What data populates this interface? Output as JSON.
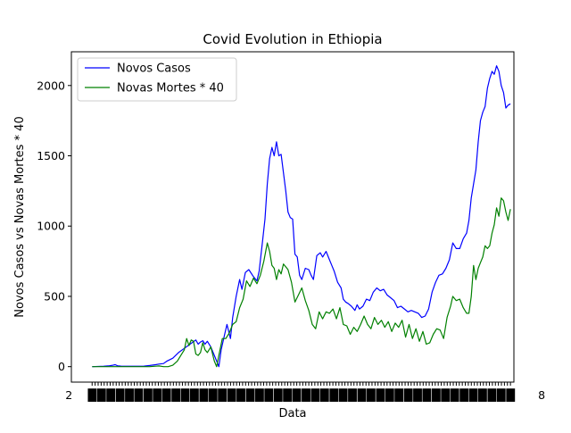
{
  "chart_data": {
    "type": "line",
    "title": "Covid Evolution in Ethiopia",
    "xlabel": "Data",
    "ylabel": "Novos Casos vs Novas Mortes * 40",
    "ylim": [
      -110,
      2240
    ],
    "xlim": [
      -18,
      366
    ],
    "yticks": [
      0,
      500,
      1000,
      1500,
      2000
    ],
    "x_tick_labels_note": "2",
    "x_tick_labels_end": "8",
    "x_tick_count": 140,
    "grid": false,
    "legend_position": "upper left",
    "series": [
      {
        "name": "Novos Casos",
        "color": "#0000ff",
        "points": [
          [
            0,
            0
          ],
          [
            10,
            3
          ],
          [
            15,
            6
          ],
          [
            18,
            10
          ],
          [
            20,
            14
          ],
          [
            22,
            6
          ],
          [
            25,
            4
          ],
          [
            30,
            3
          ],
          [
            35,
            3
          ],
          [
            40,
            3
          ],
          [
            45,
            4
          ],
          [
            50,
            8
          ],
          [
            55,
            14
          ],
          [
            58,
            18
          ],
          [
            62,
            22
          ],
          [
            65,
            40
          ],
          [
            70,
            60
          ],
          [
            75,
            100
          ],
          [
            80,
            130
          ],
          [
            85,
            160
          ],
          [
            90,
            190
          ],
          [
            92,
            160
          ],
          [
            94,
            175
          ],
          [
            96,
            185
          ],
          [
            98,
            160
          ],
          [
            100,
            180
          ],
          [
            103,
            140
          ],
          [
            105,
            100
          ],
          [
            108,
            40
          ],
          [
            110,
            0
          ],
          [
            112,
            120
          ],
          [
            115,
            230
          ],
          [
            117,
            300
          ],
          [
            120,
            200
          ],
          [
            122,
            350
          ],
          [
            125,
            500
          ],
          [
            128,
            620
          ],
          [
            130,
            550
          ],
          [
            133,
            670
          ],
          [
            136,
            690
          ],
          [
            140,
            640
          ],
          [
            143,
            610
          ],
          [
            145,
            680
          ],
          [
            148,
            900
          ],
          [
            150,
            1050
          ],
          [
            152,
            1300
          ],
          [
            154,
            1480
          ],
          [
            156,
            1560
          ],
          [
            158,
            1500
          ],
          [
            160,
            1600
          ],
          [
            162,
            1500
          ],
          [
            164,
            1510
          ],
          [
            166,
            1380
          ],
          [
            168,
            1250
          ],
          [
            170,
            1100
          ],
          [
            172,
            1060
          ],
          [
            174,
            1050
          ],
          [
            176,
            800
          ],
          [
            178,
            780
          ],
          [
            180,
            650
          ],
          [
            182,
            620
          ],
          [
            185,
            700
          ],
          [
            188,
            690
          ],
          [
            190,
            650
          ],
          [
            192,
            620
          ],
          [
            195,
            790
          ],
          [
            198,
            810
          ],
          [
            200,
            780
          ],
          [
            203,
            820
          ],
          [
            206,
            760
          ],
          [
            208,
            720
          ],
          [
            210,
            680
          ],
          [
            213,
            600
          ],
          [
            216,
            560
          ],
          [
            218,
            480
          ],
          [
            220,
            460
          ],
          [
            222,
            450
          ],
          [
            225,
            430
          ],
          [
            228,
            400
          ],
          [
            230,
            440
          ],
          [
            232,
            410
          ],
          [
            235,
            430
          ],
          [
            238,
            480
          ],
          [
            241,
            470
          ],
          [
            244,
            530
          ],
          [
            247,
            560
          ],
          [
            250,
            540
          ],
          [
            253,
            550
          ],
          [
            256,
            510
          ],
          [
            259,
            490
          ],
          [
            262,
            470
          ],
          [
            265,
            420
          ],
          [
            268,
            430
          ],
          [
            271,
            410
          ],
          [
            274,
            390
          ],
          [
            277,
            400
          ],
          [
            280,
            390
          ],
          [
            283,
            380
          ],
          [
            286,
            350
          ],
          [
            289,
            360
          ],
          [
            292,
            410
          ],
          [
            295,
            530
          ],
          [
            298,
            600
          ],
          [
            301,
            650
          ],
          [
            304,
            660
          ],
          [
            307,
            700
          ],
          [
            310,
            760
          ],
          [
            313,
            880
          ],
          [
            316,
            840
          ],
          [
            319,
            840
          ],
          [
            322,
            910
          ],
          [
            325,
            950
          ],
          [
            327,
            1040
          ],
          [
            329,
            1200
          ],
          [
            331,
            1300
          ],
          [
            333,
            1400
          ],
          [
            335,
            1600
          ],
          [
            337,
            1750
          ],
          [
            339,
            1810
          ],
          [
            341,
            1850
          ],
          [
            343,
            1980
          ],
          [
            345,
            2050
          ],
          [
            347,
            2100
          ],
          [
            349,
            2080
          ],
          [
            351,
            2140
          ],
          [
            353,
            2100
          ],
          [
            355,
            2000
          ],
          [
            357,
            1950
          ],
          [
            359,
            1840
          ],
          [
            361,
            1860
          ],
          [
            363,
            1870
          ]
        ]
      },
      {
        "name": "Novas Mortes * 40",
        "color": "#008000",
        "points": [
          [
            0,
            0
          ],
          [
            10,
            0
          ],
          [
            20,
            0
          ],
          [
            30,
            0
          ],
          [
            40,
            0
          ],
          [
            50,
            0
          ],
          [
            55,
            3
          ],
          [
            58,
            5
          ],
          [
            62,
            0
          ],
          [
            66,
            0
          ],
          [
            70,
            10
          ],
          [
            74,
            40
          ],
          [
            77,
            80
          ],
          [
            80,
            120
          ],
          [
            82,
            200
          ],
          [
            84,
            150
          ],
          [
            86,
            190
          ],
          [
            88,
            180
          ],
          [
            90,
            90
          ],
          [
            92,
            80
          ],
          [
            94,
            100
          ],
          [
            96,
            170
          ],
          [
            98,
            120
          ],
          [
            100,
            100
          ],
          [
            103,
            140
          ],
          [
            106,
            40
          ],
          [
            108,
            0
          ],
          [
            110,
            80
          ],
          [
            113,
            200
          ],
          [
            116,
            200
          ],
          [
            119,
            240
          ],
          [
            122,
            300
          ],
          [
            125,
            320
          ],
          [
            128,
            420
          ],
          [
            131,
            480
          ],
          [
            134,
            610
          ],
          [
            137,
            570
          ],
          [
            140,
            630
          ],
          [
            143,
            590
          ],
          [
            146,
            650
          ],
          [
            149,
            750
          ],
          [
            152,
            880
          ],
          [
            154,
            820
          ],
          [
            156,
            720
          ],
          [
            158,
            700
          ],
          [
            160,
            620
          ],
          [
            162,
            690
          ],
          [
            164,
            660
          ],
          [
            166,
            730
          ],
          [
            168,
            710
          ],
          [
            170,
            690
          ],
          [
            173,
            600
          ],
          [
            176,
            460
          ],
          [
            179,
            510
          ],
          [
            182,
            560
          ],
          [
            185,
            470
          ],
          [
            188,
            400
          ],
          [
            191,
            300
          ],
          [
            194,
            270
          ],
          [
            197,
            390
          ],
          [
            200,
            340
          ],
          [
            203,
            390
          ],
          [
            206,
            380
          ],
          [
            209,
            410
          ],
          [
            212,
            340
          ],
          [
            215,
            420
          ],
          [
            218,
            300
          ],
          [
            221,
            290
          ],
          [
            224,
            230
          ],
          [
            227,
            280
          ],
          [
            230,
            250
          ],
          [
            233,
            300
          ],
          [
            236,
            360
          ],
          [
            239,
            300
          ],
          [
            242,
            270
          ],
          [
            245,
            350
          ],
          [
            248,
            300
          ],
          [
            251,
            330
          ],
          [
            254,
            280
          ],
          [
            257,
            320
          ],
          [
            260,
            250
          ],
          [
            263,
            310
          ],
          [
            266,
            280
          ],
          [
            269,
            330
          ],
          [
            272,
            210
          ],
          [
            275,
            300
          ],
          [
            278,
            200
          ],
          [
            281,
            270
          ],
          [
            284,
            180
          ],
          [
            287,
            250
          ],
          [
            290,
            160
          ],
          [
            293,
            170
          ],
          [
            296,
            230
          ],
          [
            299,
            270
          ],
          [
            302,
            260
          ],
          [
            305,
            200
          ],
          [
            308,
            350
          ],
          [
            311,
            430
          ],
          [
            313,
            500
          ],
          [
            316,
            470
          ],
          [
            319,
            480
          ],
          [
            322,
            420
          ],
          [
            325,
            380
          ],
          [
            327,
            380
          ],
          [
            329,
            500
          ],
          [
            331,
            720
          ],
          [
            333,
            620
          ],
          [
            335,
            700
          ],
          [
            337,
            740
          ],
          [
            339,
            780
          ],
          [
            341,
            860
          ],
          [
            343,
            840
          ],
          [
            345,
            860
          ],
          [
            347,
            950
          ],
          [
            349,
            1010
          ],
          [
            351,
            1130
          ],
          [
            353,
            1070
          ],
          [
            355,
            1200
          ],
          [
            357,
            1180
          ],
          [
            359,
            1100
          ],
          [
            361,
            1040
          ],
          [
            363,
            1120
          ]
        ]
      }
    ]
  }
}
